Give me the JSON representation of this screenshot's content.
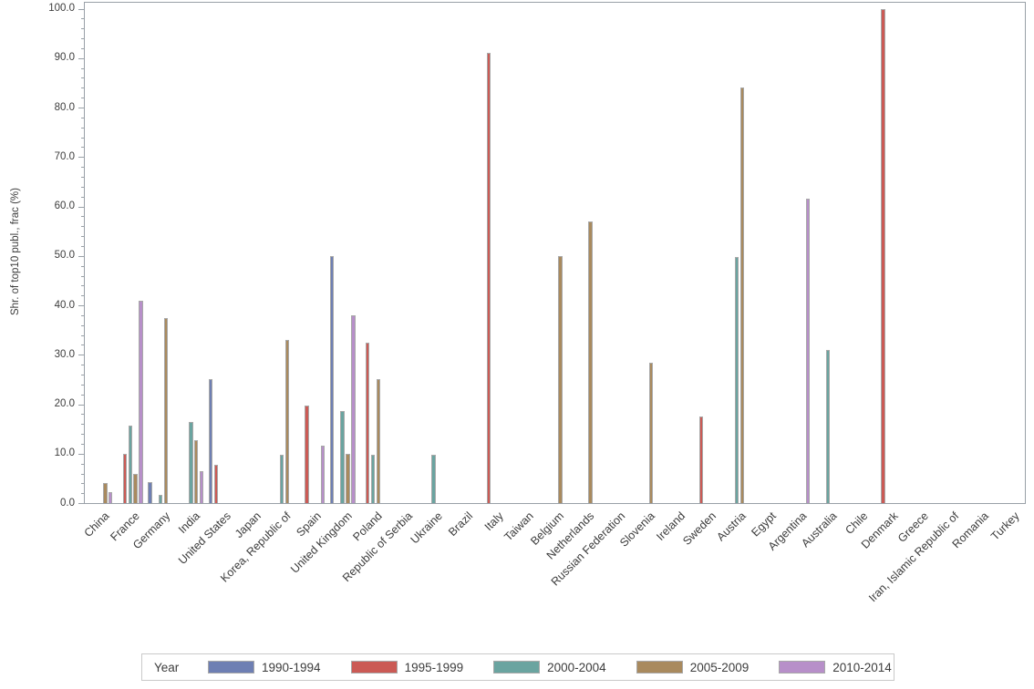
{
  "figure": {
    "background": "#ffffff",
    "frame_color": "#99a0a7",
    "text_color": "#3c3c3c",
    "bar_border_color": "#a8a8a8",
    "legend_border_color": "#c9c9c9"
  },
  "chart_data": {
    "type": "bar",
    "title": "",
    "xlabel": "",
    "ylabel": "Shr. of top10 publ., frac (%)",
    "ylim": [
      0,
      100
    ],
    "ytick_major_step": 10,
    "ytick_minor_step": 2,
    "ytick_label_format": "one_decimal",
    "grid": false,
    "legend": {
      "title": "Year",
      "position": "bottom"
    },
    "categories": [
      "China",
      "France",
      "Germany",
      "India",
      "United States",
      "Japan",
      "Korea, Republic of",
      "Spain",
      "United Kingdom",
      "Poland",
      "Republic of Serbia",
      "Ukraine",
      "Brazil",
      "Italy",
      "Taiwan",
      "Belgium",
      "Netherlands",
      "Russian Federation",
      "Slovenia",
      "Ireland",
      "Sweden",
      "Austria",
      "Egypt",
      "Argentina",
      "Australia",
      "Chile",
      "Denmark",
      "Greece",
      "Iran, Islamic Republic of",
      "Romania",
      "Turkey"
    ],
    "series": [
      {
        "name": "1990-1994",
        "color": "#6e7fb3",
        "values": [
          null,
          null,
          4.2,
          null,
          25,
          null,
          null,
          null,
          50,
          null,
          null,
          null,
          null,
          null,
          null,
          null,
          null,
          null,
          null,
          null,
          null,
          null,
          null,
          null,
          null,
          null,
          null,
          null,
          null,
          null,
          null
        ]
      },
      {
        "name": "1995-1999",
        "color": "#cb5a55",
        "values": [
          null,
          10,
          null,
          null,
          7.8,
          null,
          null,
          19.8,
          null,
          32.4,
          null,
          null,
          null,
          91,
          null,
          null,
          null,
          null,
          null,
          null,
          17.5,
          null,
          null,
          null,
          null,
          null,
          100,
          null,
          null,
          null,
          null
        ]
      },
      {
        "name": "2000-2004",
        "color": "#6aa4a0",
        "values": [
          null,
          15.7,
          1.7,
          16.5,
          null,
          null,
          9.8,
          null,
          18.7,
          9.8,
          null,
          9.8,
          null,
          null,
          null,
          null,
          null,
          null,
          null,
          null,
          null,
          49.8,
          null,
          null,
          31,
          null,
          null,
          null,
          null,
          null,
          null
        ]
      },
      {
        "name": "2005-2009",
        "color": "#a98a5e",
        "values": [
          4,
          6,
          37.5,
          12.7,
          null,
          null,
          33,
          null,
          10,
          25,
          null,
          null,
          null,
          null,
          null,
          50,
          57,
          null,
          28.4,
          null,
          null,
          84,
          null,
          null,
          null,
          null,
          null,
          null,
          null,
          null,
          null
        ]
      },
      {
        "name": "2010-2014",
        "color": "#b78fc9",
        "values": [
          2.2,
          41,
          null,
          6.4,
          null,
          null,
          null,
          11.6,
          38,
          null,
          null,
          null,
          null,
          null,
          null,
          null,
          null,
          null,
          null,
          null,
          null,
          null,
          null,
          61.5,
          null,
          null,
          null,
          null,
          null,
          null,
          null
        ]
      }
    ]
  }
}
